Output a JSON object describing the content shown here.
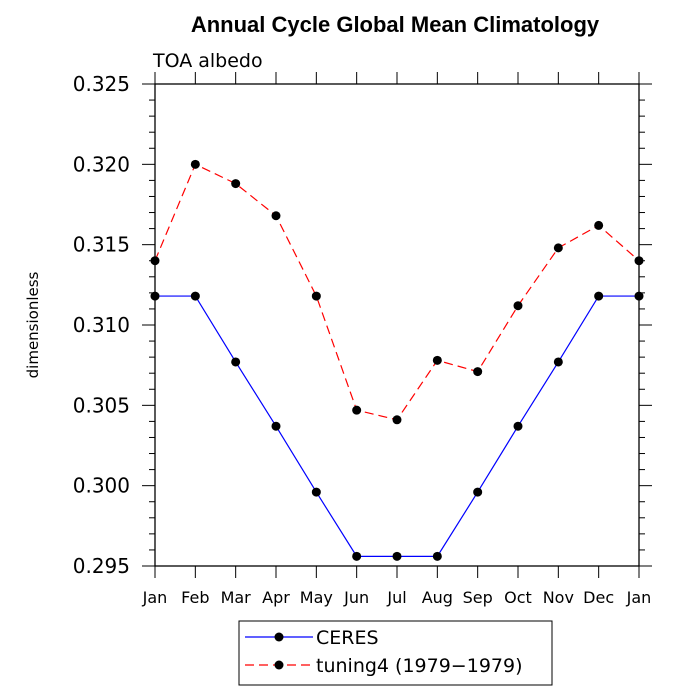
{
  "chart_data": {
    "type": "line",
    "title": "Annual Cycle Global Mean Climatology",
    "subtitle": "TOA albedo",
    "ylabel": "dimensionless",
    "xlabel": "",
    "ylim": [
      0.295,
      0.325
    ],
    "y_ticks": [
      "0.295",
      "0.300",
      "0.305",
      "0.310",
      "0.315",
      "0.320",
      "0.325"
    ],
    "categories": [
      "Jan",
      "Feb",
      "Mar",
      "Apr",
      "May",
      "Jun",
      "Jul",
      "Aug",
      "Sep",
      "Oct",
      "Nov",
      "Dec",
      "Jan"
    ],
    "series": [
      {
        "name": "CERES",
        "color": "#0000ff",
        "line_style": "solid",
        "values": [
          0.3118,
          0.3118,
          0.3077,
          0.3037,
          0.2996,
          0.2956,
          0.2956,
          0.2956,
          0.2996,
          0.3037,
          0.3077,
          0.3118,
          0.3118
        ]
      },
      {
        "name": "tuning4 (1979−1979)",
        "color": "#ff0000",
        "line_style": "dashed",
        "values": [
          0.314,
          0.32,
          0.3188,
          0.3168,
          0.3118,
          0.3047,
          0.3041,
          0.3078,
          0.3071,
          0.3112,
          0.3148,
          0.3162,
          0.314
        ]
      }
    ],
    "legend_position": "bottom-center",
    "grid": false
  }
}
